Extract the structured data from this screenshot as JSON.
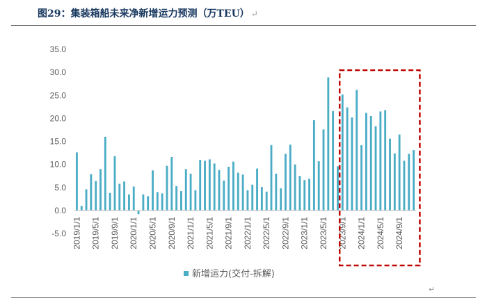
{
  "header": {
    "title": "图29：集装箱船未来净新增运力预测（万TEU）",
    "para_mark": "↵"
  },
  "footer": {
    "para_mark": "↵"
  },
  "chart_data": {
    "type": "bar",
    "title": "图29：集装箱船未来净新增运力预测（万TEU）",
    "xlabel": "",
    "ylabel": "",
    "ylim": [
      -5,
      35
    ],
    "yticks": [
      "-5.0",
      "0.0",
      "5.0",
      "10.0",
      "15.0",
      "20.0",
      "25.0",
      "30.0",
      "35.0"
    ],
    "yticks_values": [
      -5,
      0,
      5,
      10,
      15,
      20,
      25,
      30,
      35
    ],
    "grid": false,
    "legend": "bottom",
    "bar_color": "#4bacc6",
    "highlight_color": "#c00000",
    "highlight_range": [
      "2023/9/1",
      "2024/12/1"
    ],
    "categories": [
      "2019/1/1",
      "2019/2/1",
      "2019/3/1",
      "2019/4/1",
      "2019/5/1",
      "2019/6/1",
      "2019/7/1",
      "2019/8/1",
      "2019/9/1",
      "2019/10/1",
      "2019/11/1",
      "2019/12/1",
      "2020/1/1",
      "2020/2/1",
      "2020/3/1",
      "2020/4/1",
      "2020/5/1",
      "2020/6/1",
      "2020/7/1",
      "2020/8/1",
      "2020/9/1",
      "2020/10/1",
      "2020/11/1",
      "2020/12/1",
      "2021/1/1",
      "2021/2/1",
      "2021/3/1",
      "2021/4/1",
      "2021/5/1",
      "2021/6/1",
      "2021/7/1",
      "2021/8/1",
      "2021/9/1",
      "2021/10/1",
      "2021/11/1",
      "2021/12/1",
      "2022/1/1",
      "2022/2/1",
      "2022/3/1",
      "2022/4/1",
      "2022/5/1",
      "2022/6/1",
      "2022/7/1",
      "2022/8/1",
      "2022/9/1",
      "2022/10/1",
      "2022/11/1",
      "2022/12/1",
      "2023/1/1",
      "2023/2/1",
      "2023/3/1",
      "2023/4/1",
      "2023/5/1",
      "2023/6/1",
      "2023/7/1",
      "2023/8/1",
      "2023/9/1",
      "2023/10/1",
      "2023/11/1",
      "2023/12/1",
      "2024/1/1",
      "2024/2/1",
      "2024/3/1",
      "2024/4/1",
      "2024/5/1",
      "2024/6/1",
      "2024/7/1",
      "2024/8/1",
      "2024/9/1",
      "2024/10/1",
      "2024/11/1",
      "2024/12/1"
    ],
    "tick_labels": [
      "2019/1/1",
      "2019/5/1",
      "2019/9/1",
      "2020/1/1",
      "2020/5/1",
      "2020/9/1",
      "2021/1/1",
      "2021/5/1",
      "2021/9/1",
      "2022/1/1",
      "2022/5/1",
      "2022/9/1",
      "2023/1/1",
      "2023/5/1",
      "2023/9/1",
      "2024/1/1",
      "2024/5/1",
      "2024/9/1"
    ],
    "series": [
      {
        "name": "新增运力(交付-拆解)",
        "values": [
          12.6,
          1.0,
          4.6,
          7.9,
          6.4,
          9.0,
          16.0,
          3.8,
          11.8,
          5.8,
          6.3,
          3.5,
          5.2,
          -0.8,
          3.5,
          3.1,
          8.7,
          4.0,
          3.7,
          9.7,
          11.6,
          5.3,
          4.2,
          9.0,
          8.0,
          4.4,
          11.0,
          10.8,
          11.1,
          10.2,
          8.8,
          6.5,
          9.5,
          10.6,
          8.2,
          7.8,
          4.4,
          5.6,
          9.1,
          5.1,
          4.1,
          14.2,
          8.0,
          4.8,
          12.3,
          14.3,
          10.0,
          7.5,
          6.6,
          6.9,
          19.6,
          10.7,
          17.6,
          28.9,
          21.6,
          9.6,
          25.2,
          22.4,
          20.2,
          26.2,
          14.2,
          21.2,
          20.5,
          18.3,
          21.5,
          21.8,
          15.6,
          12.4,
          16.5,
          10.8,
          12.3,
          13.1
        ]
      }
    ]
  }
}
